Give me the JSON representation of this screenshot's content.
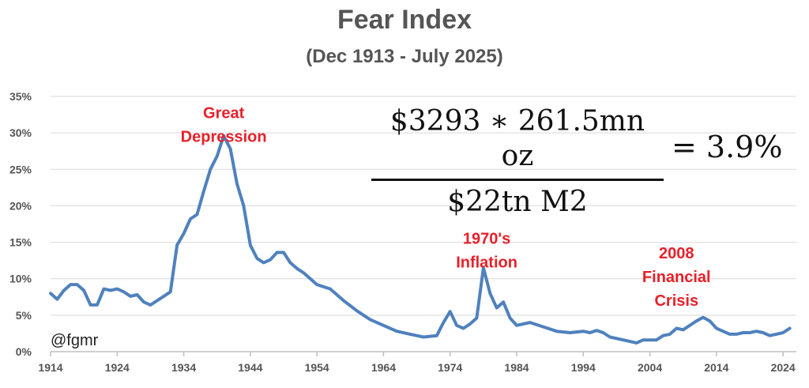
{
  "chart_data": {
    "type": "line",
    "title": "Fear Index",
    "subtitle": "(Dec 1913 - July 2025)",
    "xlabel": "",
    "ylabel": "",
    "xlim": [
      1914,
      2026
    ],
    "ylim": [
      0,
      35
    ],
    "x_ticks": [
      "1914",
      "1924",
      "1934",
      "1944",
      "1954",
      "1964",
      "1974",
      "1984",
      "1994",
      "2004",
      "2014",
      "2024"
    ],
    "y_ticks": [
      "0%",
      "5%",
      "10%",
      "15%",
      "20%",
      "25%",
      "30%",
      "35%"
    ],
    "grid": true,
    "line_color": "#4f81bd",
    "annotation_color": "#e8202a",
    "series": [
      {
        "x": [
          1914,
          1915,
          1916,
          1917,
          1918,
          1919,
          1920,
          1921,
          1922,
          1923,
          1924,
          1925,
          1926,
          1927,
          1928,
          1929,
          1930,
          1931,
          1932,
          1933,
          1934,
          1935,
          1936,
          1937,
          1938,
          1939,
          1940,
          1941,
          1942,
          1943,
          1944,
          1945,
          1946,
          1947,
          1948,
          1949,
          1950,
          1951,
          1952,
          1954,
          1956,
          1958,
          1960,
          1962,
          1964,
          1966,
          1968,
          1970,
          1972,
          1973,
          1974,
          1975,
          1976,
          1977,
          1978,
          1979,
          1980,
          1981,
          1982,
          1983,
          1984,
          1985,
          1986,
          1988,
          1990,
          1992,
          1994,
          1995,
          1996,
          1997,
          1998,
          2000,
          2002,
          2003,
          2004,
          2005,
          2006,
          2007,
          2008,
          2009,
          2010,
          2011,
          2012,
          2013,
          2014,
          2015,
          2016,
          2017,
          2018,
          2019,
          2020,
          2021,
          2022,
          2023,
          2024,
          2025
        ],
        "y": [
          8.0,
          7.2,
          8.4,
          9.2,
          9.2,
          8.4,
          6.4,
          6.4,
          8.6,
          8.4,
          8.6,
          8.2,
          7.6,
          7.8,
          6.8,
          6.4,
          7.0,
          7.6,
          8.2,
          14.6,
          16.2,
          18.2,
          18.8,
          22.0,
          25.0,
          26.8,
          29.6,
          27.8,
          23.0,
          20.0,
          14.6,
          12.8,
          12.2,
          12.6,
          13.6,
          13.6,
          12.2,
          11.4,
          10.8,
          9.2,
          8.6,
          7.0,
          5.6,
          4.4,
          3.6,
          2.8,
          2.4,
          2.0,
          2.2,
          4.0,
          5.5,
          3.6,
          3.2,
          3.8,
          4.6,
          11.5,
          8.0,
          6.0,
          6.8,
          4.6,
          3.6,
          3.8,
          4.0,
          3.4,
          2.8,
          2.6,
          2.8,
          2.6,
          2.9,
          2.6,
          2.0,
          1.6,
          1.2,
          1.6,
          1.6,
          1.6,
          2.2,
          2.4,
          3.2,
          3.0,
          3.6,
          4.2,
          4.7,
          4.2,
          3.2,
          2.8,
          2.4,
          2.4,
          2.6,
          2.6,
          2.8,
          2.6,
          2.2,
          2.4,
          2.6,
          3.2
        ]
      }
    ],
    "annotations": [
      {
        "id": "great-depression",
        "lines": [
          "Great",
          "Depression"
        ],
        "year": 1940,
        "value": 32.0
      },
      {
        "id": "inflation-1970s",
        "lines": [
          "1970's",
          "Inflation"
        ],
        "year": 1979.5,
        "value": 14.8
      },
      {
        "id": "financial-crisis-2008",
        "lines": [
          "2008",
          "Financial",
          "Crisis"
        ],
        "year": 2008,
        "value": 12.8
      }
    ]
  },
  "formula": {
    "numerator": "$3293 ∗ 261.5mn oz",
    "denominator": "$22tn M2",
    "result": "= 3.9%"
  },
  "credit": "@fgmr"
}
